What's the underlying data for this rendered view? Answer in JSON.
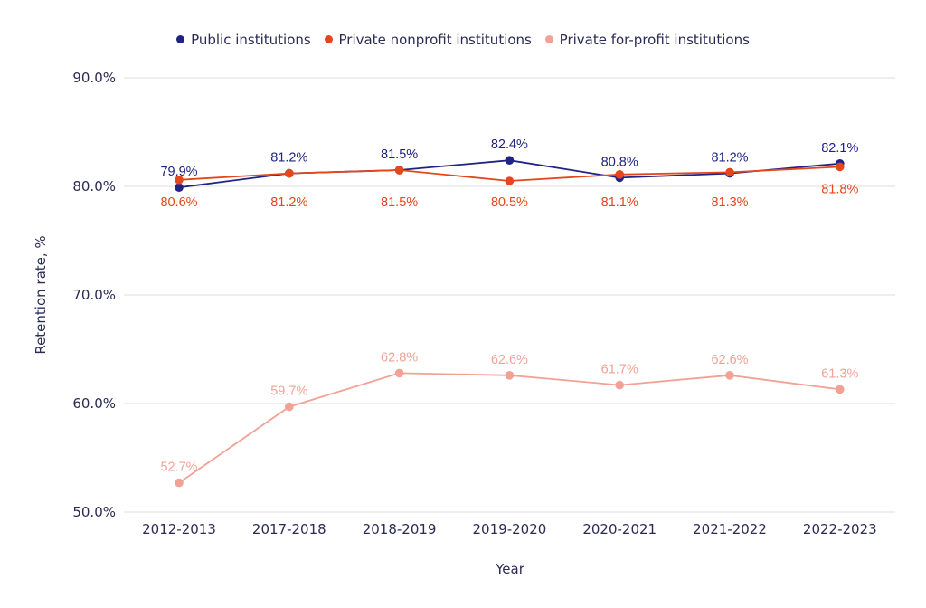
{
  "chart_data": {
    "type": "line",
    "title": "",
    "xlabel": "Year",
    "ylabel": "Retention rate, %",
    "categories": [
      "2012-2013",
      "2017-2018",
      "2018-2019",
      "2019-2020",
      "2020-2021",
      "2021-2022",
      "2022-2023"
    ],
    "ylim": [
      50,
      90
    ],
    "yticks": [
      50,
      60,
      70,
      80,
      90
    ],
    "ytick_labels": [
      "50.0%",
      "60.0%",
      "70.0%",
      "80.0%",
      "90.0%"
    ],
    "grid": true,
    "legend_position": "top-center",
    "series": [
      {
        "name": "Public institutions",
        "color": "#1f2383",
        "values": [
          79.9,
          81.2,
          81.5,
          82.4,
          80.8,
          81.2,
          82.1
        ],
        "labels": [
          "79.9%",
          "81.2%",
          "81.5%",
          "82.4%",
          "80.8%",
          "81.2%",
          "82.1%"
        ],
        "label_position": "above"
      },
      {
        "name": "Private nonprofit institutions",
        "color": "#e5471c",
        "values": [
          80.6,
          81.2,
          81.5,
          80.5,
          81.1,
          81.3,
          81.8
        ],
        "labels": [
          "80.6%",
          "81.2%",
          "81.5%",
          "80.5%",
          "81.1%",
          "81.3%",
          "81.8%"
        ],
        "label_position": "below"
      },
      {
        "name": "Private for-profit institutions",
        "color": "#f2a294",
        "values": [
          52.7,
          59.7,
          62.8,
          62.6,
          61.7,
          62.6,
          61.3
        ],
        "labels": [
          "52.7%",
          "59.7%",
          "62.8%",
          "62.6%",
          "61.7%",
          "62.6%",
          "61.3%"
        ],
        "label_position": "above"
      }
    ]
  }
}
